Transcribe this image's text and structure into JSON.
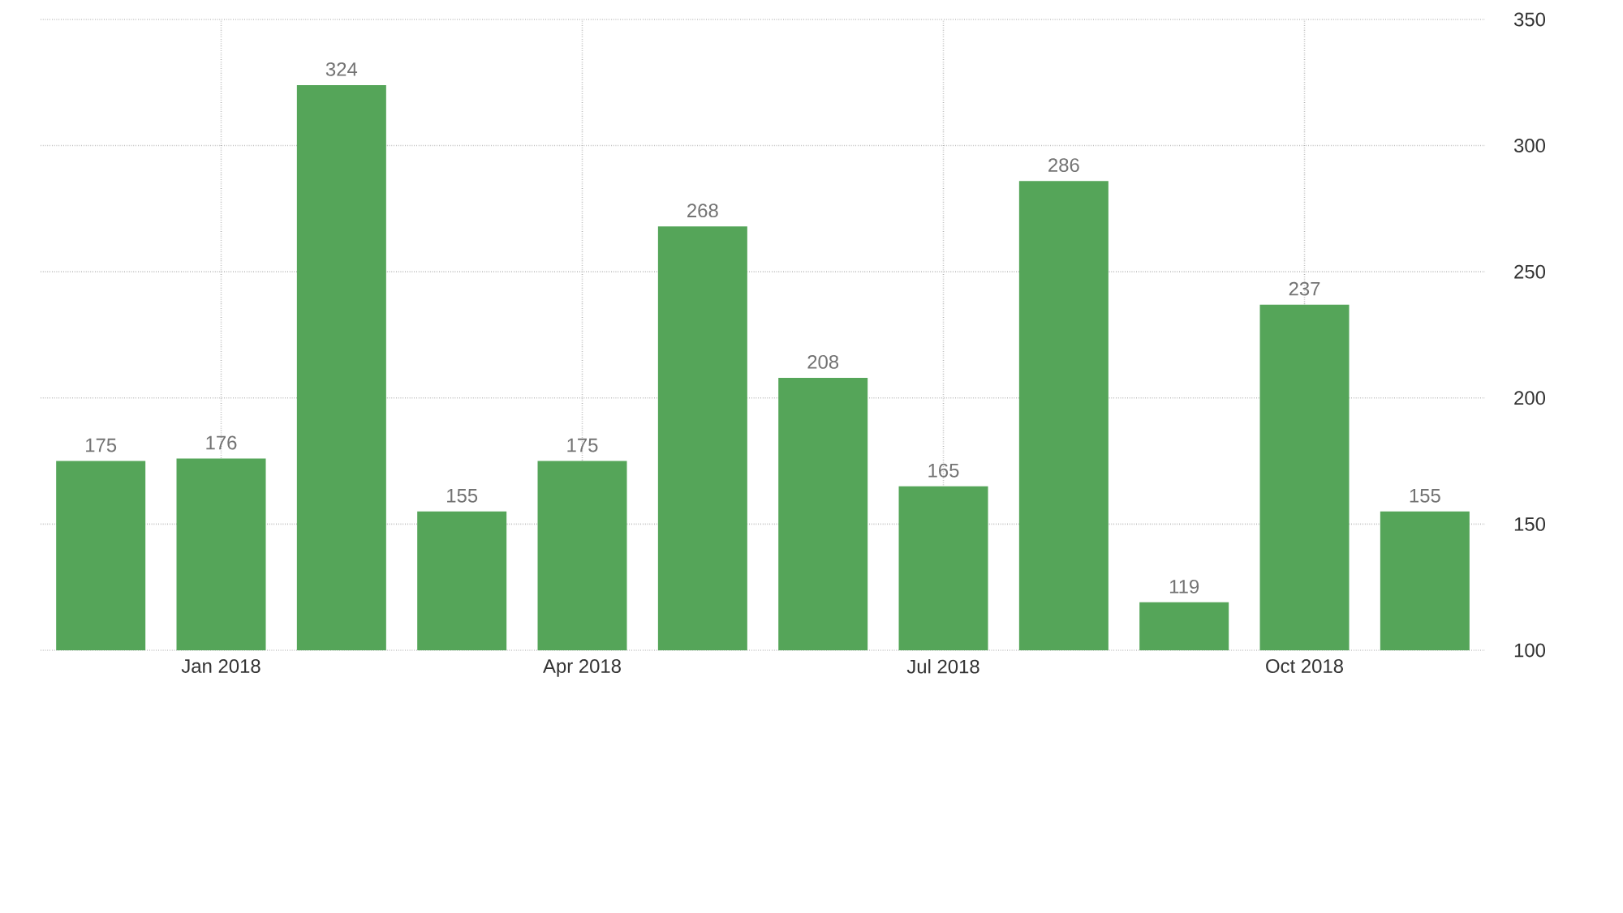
{
  "chart_data": {
    "type": "bar",
    "categories": [
      null,
      "Jan 2018",
      null,
      null,
      "Apr 2018",
      null,
      null,
      "Jul 2018",
      null,
      null,
      "Oct 2018",
      null
    ],
    "values": [
      175,
      176,
      324,
      155,
      175,
      268,
      208,
      165,
      286,
      119,
      237,
      155
    ],
    "color": "#55a559",
    "ylim": [
      100,
      350
    ],
    "yticks": [
      100,
      150,
      200,
      250,
      300,
      350
    ],
    "grid": true,
    "data_labels": true
  }
}
